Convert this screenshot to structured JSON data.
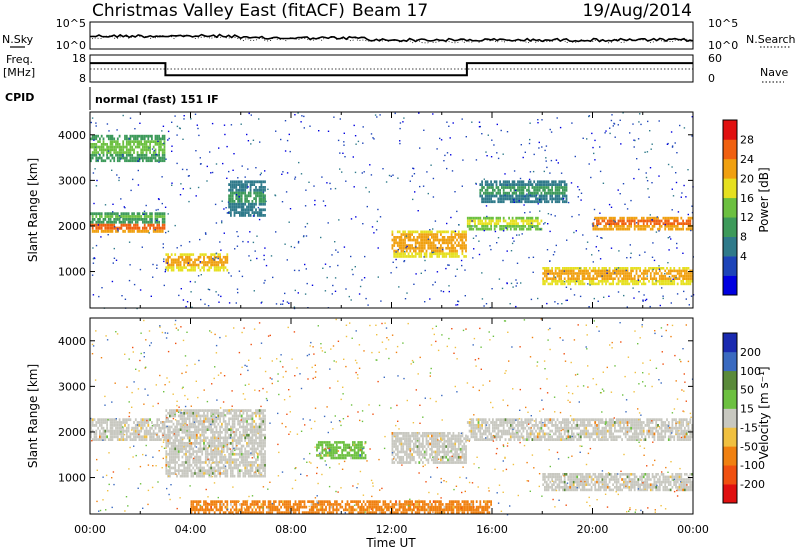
{
  "header": {
    "station": "Christmas Valley East (fitACF)",
    "beam": "Beam 17",
    "date": "19/Aug/2014"
  },
  "noise_panel": {
    "left_label": "N.Sky",
    "right_label": "N.Search",
    "left_ticks": [
      "10^5",
      "10^0"
    ],
    "right_ticks": [
      "10^5",
      "10^0"
    ]
  },
  "freq_panel": {
    "left_label_1": "Freq.",
    "left_label_2": "[MHz]",
    "right_label": "Nave",
    "left_ticks": [
      "18",
      "8"
    ],
    "right_ticks": [
      "60",
      "0"
    ],
    "freq_steps": [
      {
        "time": "00:00",
        "value": 15
      },
      {
        "time": "03:00",
        "value": 10.5
      },
      {
        "time": "15:00",
        "value": 15
      },
      {
        "time": "24:00",
        "value": 15
      }
    ]
  },
  "cpid": {
    "label": "CPID",
    "value": "normal (fast) 151 IF"
  },
  "xaxis": {
    "title": "Time UT",
    "ticks": [
      "00:00",
      "04:00",
      "08:00",
      "12:00",
      "16:00",
      "20:00",
      "00:00"
    ]
  },
  "power_panel": {
    "ylabel": "Slant Range [km]",
    "yticks": [
      "4000",
      "3000",
      "2000",
      "1000"
    ],
    "colorbar_label": "Power [dB]",
    "colorbar_ticks": [
      "28",
      "24",
      "20",
      "16",
      "12",
      "8",
      "4"
    ],
    "colors": [
      "#0000e0",
      "#1d44b8",
      "#2f7a8a",
      "#3d9a5a",
      "#6cc040",
      "#e6e020",
      "#f0a010",
      "#f06010",
      "#e01010"
    ]
  },
  "velocity_panel": {
    "ylabel": "Slant Range [km]",
    "yticks": [
      "4000",
      "3000",
      "2000",
      "1000"
    ],
    "colorbar_label": "Velocity [m s⁻¹]",
    "colorbar_ticks": [
      "200",
      "100",
      "50",
      "15",
      "-15",
      "-50",
      "-100",
      "-200"
    ],
    "colors": [
      "#1a2ab0",
      "#3a6ac0",
      "#5a8a3a",
      "#6cc040",
      "#c8c8c0",
      "#f0c040",
      "#f08010",
      "#f05010",
      "#e01010"
    ]
  },
  "chart_data": {
    "type": "heatmap",
    "xlabel": "Time UT",
    "ylabel": "Slant Range [km]",
    "xlim": [
      "00:00",
      "24:00"
    ],
    "ylim": [
      200,
      4500
    ],
    "power_echo_bands": [
      {
        "t0": 0.0,
        "t1": 3.0,
        "r0": 1850,
        "r1": 2050,
        "dB": 28
      },
      {
        "t0": 0.0,
        "t1": 3.0,
        "r0": 2050,
        "r1": 2300,
        "dB": 16
      },
      {
        "t0": 0.0,
        "t1": 3.0,
        "r0": 3400,
        "r1": 4000,
        "dB": 16
      },
      {
        "t0": 3.0,
        "t1": 5.5,
        "r0": 1000,
        "r1": 1400,
        "dB": 24
      },
      {
        "t0": 5.5,
        "t1": 7.0,
        "r0": 2200,
        "r1": 3000,
        "dB": 12
      },
      {
        "t0": 12.0,
        "t1": 15.0,
        "r0": 1300,
        "r1": 1900,
        "dB": 24
      },
      {
        "t0": 15.0,
        "t1": 18.0,
        "r0": 1900,
        "r1": 2200,
        "dB": 20
      },
      {
        "t0": 15.5,
        "t1": 19.0,
        "r0": 2500,
        "r1": 3000,
        "dB": 12
      },
      {
        "t0": 18.0,
        "t1": 24.0,
        "r0": 700,
        "r1": 1100,
        "dB": 24
      },
      {
        "t0": 20.0,
        "t1": 24.0,
        "r0": 1900,
        "r1": 2200,
        "dB": 26
      }
    ],
    "velocity_echo_bands": [
      {
        "t0": 0.0,
        "t1": 3.0,
        "r0": 1800,
        "r1": 2300,
        "v": 0
      },
      {
        "t0": 3.0,
        "t1": 7.0,
        "r0": 1000,
        "r1": 2500,
        "v": 0
      },
      {
        "t0": 9.0,
        "t1": 11.0,
        "r0": 1400,
        "r1": 1800,
        "v": 30
      },
      {
        "t0": 12.0,
        "t1": 15.0,
        "r0": 1300,
        "r1": 2000,
        "v": 0
      },
      {
        "t0": 15.0,
        "t1": 24.0,
        "r0": 1800,
        "r1": 2300,
        "v": 0
      },
      {
        "t0": 18.0,
        "t1": 24.0,
        "r0": 700,
        "r1": 1100,
        "v": 0
      },
      {
        "t0": 4.0,
        "t1": 16.0,
        "r0": 200,
        "r1": 500,
        "v": -50
      }
    ]
  }
}
